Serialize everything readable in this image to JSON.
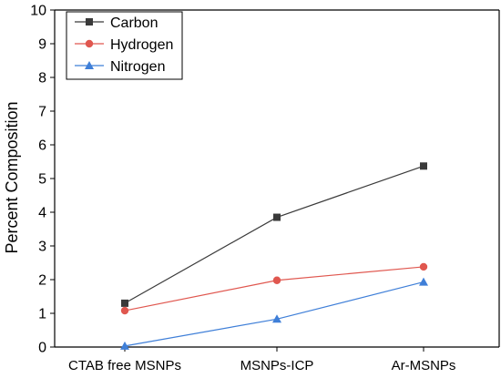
{
  "chart_data": {
    "type": "line",
    "title": "",
    "xlabel": "",
    "ylabel": "Percent Composition",
    "categories": [
      "CTAB free MSNPs",
      "MSNPs-ICP",
      "Ar-MSNPs"
    ],
    "ylim": [
      0,
      10
    ],
    "yticks": [
      0,
      1,
      2,
      3,
      4,
      5,
      6,
      7,
      8,
      9,
      10
    ],
    "grid": false,
    "legend_position": "top-left",
    "series": [
      {
        "name": "Carbon",
        "values": [
          1.3,
          3.85,
          5.37
        ],
        "color": "#3a3a3a",
        "marker": "square"
      },
      {
        "name": "Hydrogen",
        "values": [
          1.08,
          1.98,
          2.38
        ],
        "color": "#e0574f",
        "marker": "circle"
      },
      {
        "name": "Nitrogen",
        "values": [
          0.03,
          0.83,
          1.93
        ],
        "color": "#3f7fd8",
        "marker": "triangle"
      }
    ]
  }
}
